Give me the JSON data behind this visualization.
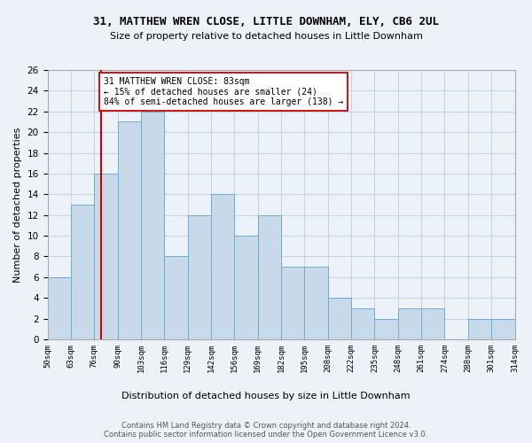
{
  "title1": "31, MATTHEW WREN CLOSE, LITTLE DOWNHAM, ELY, CB6 2UL",
  "title2": "Size of property relative to detached houses in Little Downham",
  "xlabel": "Distribution of detached houses by size in Little Downham",
  "ylabel": "Number of detached properties",
  "bar_values": [
    6,
    13,
    16,
    21,
    22,
    8,
    12,
    14,
    10,
    12,
    7,
    7,
    4,
    3,
    2,
    3,
    3,
    0,
    2,
    2
  ],
  "bar_labels": [
    "50sqm",
    "63sqm",
    "76sqm",
    "90sqm",
    "103sqm",
    "116sqm",
    "129sqm",
    "142sqm",
    "156sqm",
    "169sqm",
    "182sqm",
    "195sqm",
    "208sqm",
    "222sqm",
    "235sqm",
    "248sqm",
    "261sqm",
    "274sqm",
    "288sqm",
    "301sqm",
    "314sqm"
  ],
  "bar_color": "#c8daea",
  "bar_edge_color": "#6aaed6",
  "grid_color": "#c8d4e4",
  "vline_x": 2.31,
  "vline_color": "#cc0000",
  "annotation_text": "31 MATTHEW WREN CLOSE: 83sqm\n← 15% of detached houses are smaller (24)\n84% of semi-detached houses are larger (138) →",
  "annotation_box_color": "white",
  "annotation_box_edge": "#cc0000",
  "ylim": [
    0,
    26
  ],
  "yticks": [
    0,
    2,
    4,
    6,
    8,
    10,
    12,
    14,
    16,
    18,
    20,
    22,
    24,
    26
  ],
  "footer1": "Contains HM Land Registry data © Crown copyright and database right 2024.",
  "footer2": "Contains public sector information licensed under the Open Government Licence v3.0.",
  "bg_color": "#edf2f9"
}
